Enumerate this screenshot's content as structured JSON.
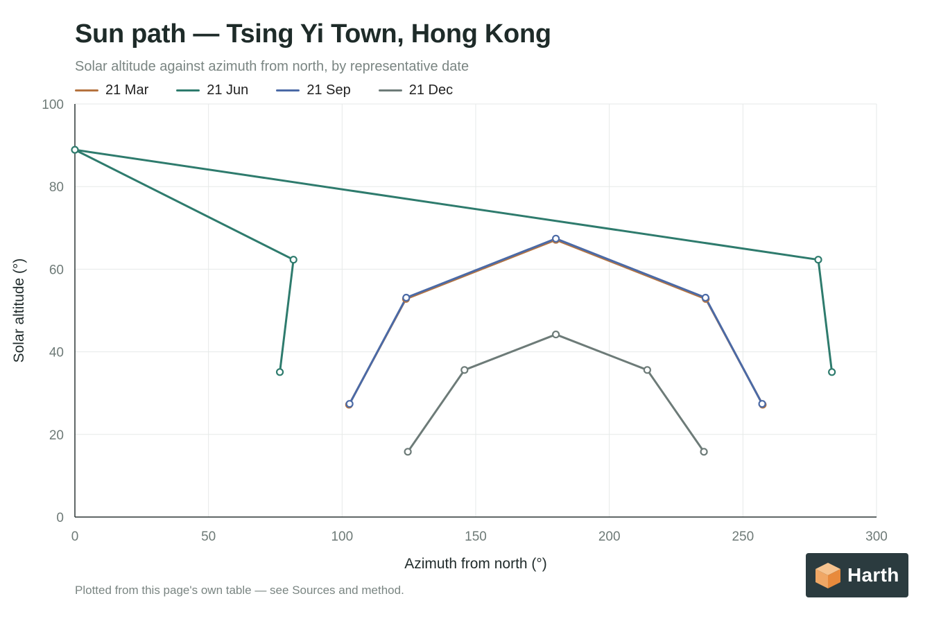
{
  "header": {
    "title": "Sun path — Tsing Yi Town, Hong Kong",
    "subtitle": "Solar altitude against azimuth from north, by representative date"
  },
  "footnote": "Plotted from this page's own table — see Sources and method.",
  "badge": {
    "text": "Harth",
    "icon": "cube-logo-icon"
  },
  "chart_data": {
    "type": "line",
    "xlabel": "Azimuth from north (°)",
    "ylabel": "Solar altitude (°)",
    "xlim": [
      0,
      300
    ],
    "ylim": [
      0,
      100
    ],
    "xticks": [
      0,
      50,
      100,
      150,
      200,
      250,
      300
    ],
    "yticks": [
      0,
      20,
      40,
      60,
      80,
      100
    ],
    "grid": true,
    "legend_placement": "top-left",
    "series": [
      {
        "name": "21 Mar",
        "color": "#b5733f",
        "points": [
          [
            102.6,
            27.2
          ],
          [
            123.9,
            52.8
          ],
          [
            180,
            67.1
          ],
          [
            236.1,
            52.8
          ],
          [
            257.4,
            27.2
          ]
        ]
      },
      {
        "name": "21 Jun",
        "color": "#2e7b6d",
        "points": [
          [
            76.7,
            35.1
          ],
          [
            81.8,
            62.3
          ],
          [
            0,
            88.9
          ],
          [
            278.2,
            62.3
          ],
          [
            283.3,
            35.1
          ]
        ]
      },
      {
        "name": "21 Sep",
        "color": "#4b6aa6",
        "points": [
          [
            102.8,
            27.4
          ],
          [
            124.0,
            53.1
          ],
          [
            180,
            67.4
          ],
          [
            236.0,
            53.1
          ],
          [
            257.2,
            27.4
          ]
        ]
      },
      {
        "name": "21 Dec",
        "color": "#6d7b78",
        "points": [
          [
            124.6,
            15.8
          ],
          [
            145.8,
            35.6
          ],
          [
            180,
            44.2
          ],
          [
            214.2,
            35.6
          ],
          [
            235.4,
            15.8
          ]
        ]
      }
    ]
  }
}
